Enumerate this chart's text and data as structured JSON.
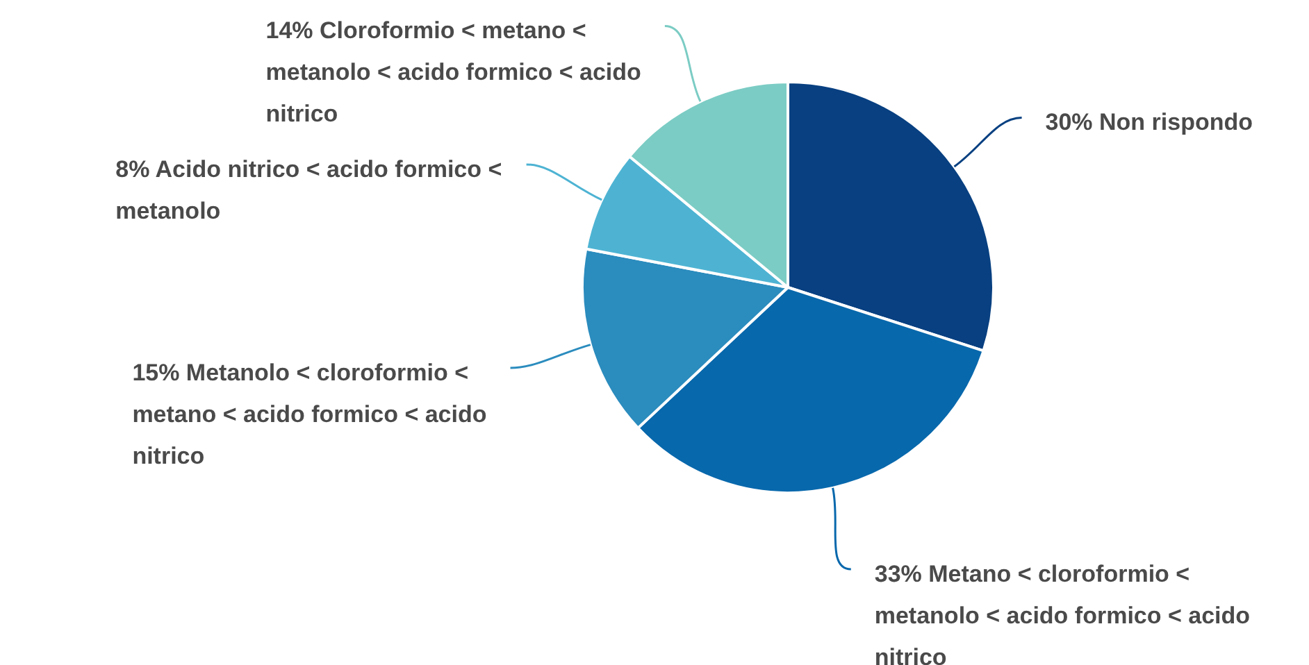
{
  "chart_data": {
    "type": "pie",
    "categories": [
      "Non rispondo",
      "Metano < cloroformio < metanolo < acido formico < acido nitrico",
      "Metanolo < cloroformio < metano < acido formico < acido nitrico",
      "Acido nitrico < acido formico < metanolo",
      "Cloroformio < metano < metanolo < acido formico < acido nitrico"
    ],
    "values": [
      30,
      33,
      15,
      8,
      14
    ],
    "value_labels": [
      "30%",
      "33%",
      "15%",
      "8%",
      "14%"
    ],
    "colors": [
      "#084081",
      "#0868ac",
      "#2b8cbe",
      "#4eb3d3",
      "#7bccc4"
    ]
  }
}
